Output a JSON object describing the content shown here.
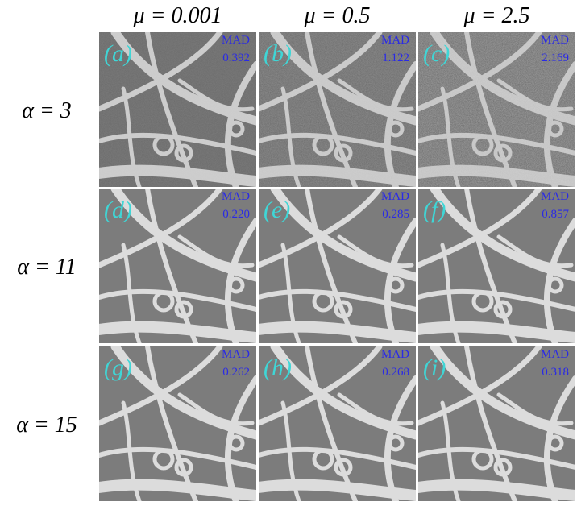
{
  "column_headers": [
    "μ = 0.001",
    "μ = 0.5",
    "μ = 2.5"
  ],
  "row_headers": [
    "α = 3",
    "α = 11",
    "α = 15"
  ],
  "panels": [
    {
      "label": "(a)",
      "metric": "MAD",
      "value": "0.392"
    },
    {
      "label": "(b)",
      "metric": "MAD",
      "value": "1.122"
    },
    {
      "label": "(c)",
      "metric": "MAD",
      "value": "2.169"
    },
    {
      "label": "(d)",
      "metric": "MAD",
      "value": "0.220"
    },
    {
      "label": "(e)",
      "metric": "MAD",
      "value": "0.285"
    },
    {
      "label": "(f)",
      "metric": "MAD",
      "value": "0.857"
    },
    {
      "label": "(g)",
      "metric": "MAD",
      "value": "0.262"
    },
    {
      "label": "(h)",
      "metric": "MAD",
      "value": "0.268"
    },
    {
      "label": "(i)",
      "metric": "MAD",
      "value": "0.318"
    }
  ]
}
